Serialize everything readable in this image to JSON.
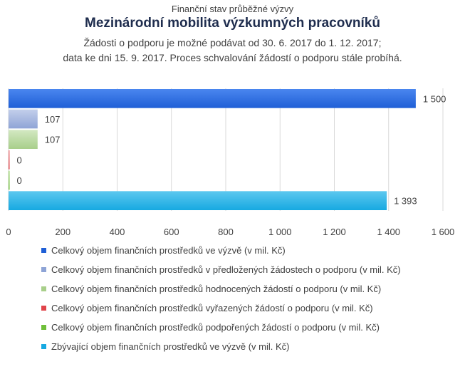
{
  "chart_data": {
    "type": "bar",
    "orientation": "horizontal",
    "pretitle": "Finanční stav průběžné výzvy",
    "title": "Mezinárodní mobilita výzkumných pracovníků",
    "subtitle_line1": "Žádosti o podporu je možné podávat od 30. 6. 2017 do 1. 12. 2017;",
    "subtitle_line2": "data ke dni 15. 9. 2017. Proces schvalování žádostí o podporu stále probíhá.",
    "xlim": [
      0,
      1600
    ],
    "xticks": [
      0,
      200,
      400,
      600,
      800,
      1000,
      1200,
      1400,
      1600
    ],
    "xtick_labels": [
      "0",
      "200",
      "400",
      "600",
      "800",
      "1 000",
      "1 200",
      "1 400",
      "1 600"
    ],
    "grid": true,
    "legend_position": "bottom",
    "series": [
      {
        "name": "Celkový objem finančních prostředků ve výzvě (v mil. Kč)",
        "value": 1500,
        "label": "1 500",
        "color": "#1f5fd6",
        "color_light": "#4a86ef"
      },
      {
        "name": "Celkový objem finančních prostředků v předložených žádostech o podporu (v mil. Kč)",
        "value": 107,
        "label": "107",
        "color": "#8ea4d6",
        "color_light": "#c3cfeb"
      },
      {
        "name": "Celkový objem finančních prostředků hodnocených žádostí o podporu (v mil. Kč)",
        "value": 107,
        "label": "107",
        "color": "#a8cf8a",
        "color_light": "#d3e8c2"
      },
      {
        "name": "Celkový objem finančních prostředků vyřazených žádostí o podporu (v mil. Kč)",
        "value": 0,
        "label": "0",
        "color": "#e0444a",
        "color_light": "#f08a8d"
      },
      {
        "name": "Celkový objem finančních prostředků podpořených žádostí o podporu (v mil. Kč)",
        "value": 0,
        "label": "0",
        "color": "#6fbf3a",
        "color_light": "#a5d97c"
      },
      {
        "name": "Zbývající objem finančních prostředků ve výzvě (v mil. Kč)",
        "value": 1393,
        "label": "1 393",
        "color": "#17a9e1",
        "color_light": "#5cc8ef"
      }
    ]
  }
}
